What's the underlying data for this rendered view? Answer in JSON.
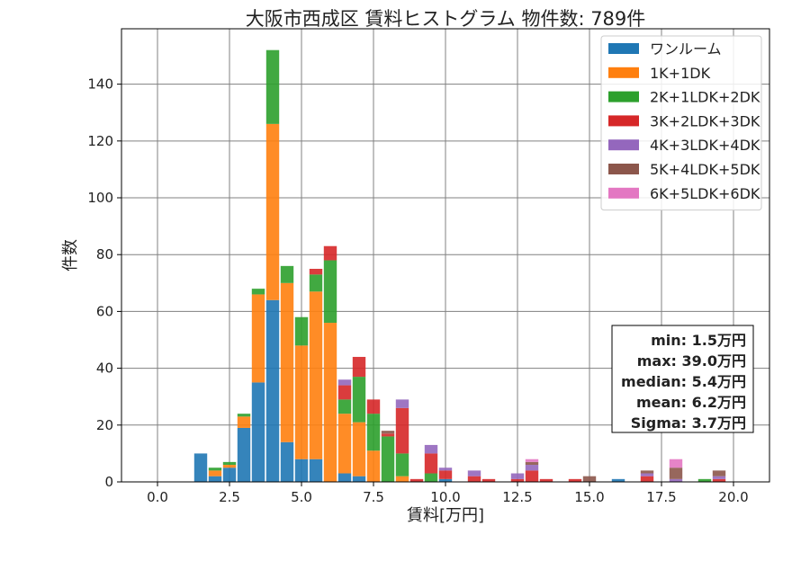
{
  "chart_data": {
    "type": "bar",
    "stacked": true,
    "title": "大阪市西成区 賃料ヒストグラム 物件数: 789件",
    "xlabel": "賃料[万円]",
    "ylabel": "件数",
    "xlim": [
      -1.25,
      21.25
    ],
    "ylim": [
      0,
      159.5
    ],
    "bin_width": 0.5,
    "grid": true,
    "legend_position": "top-right",
    "x_ticks": [
      0.0,
      2.5,
      5.0,
      7.5,
      10.0,
      12.5,
      15.0,
      17.5,
      20.0
    ],
    "x_tick_labels": [
      "0.0",
      "2.5",
      "5.0",
      "7.5",
      "10.0",
      "12.5",
      "15.0",
      "17.5",
      "20.0"
    ],
    "y_ticks": [
      0,
      20,
      40,
      60,
      80,
      100,
      120,
      140
    ],
    "y_tick_labels": [
      "0",
      "20",
      "40",
      "60",
      "80",
      "100",
      "120",
      "140"
    ],
    "x": [
      1.5,
      2.0,
      2.5,
      3.0,
      3.5,
      4.0,
      4.5,
      5.0,
      5.5,
      6.0,
      6.5,
      7.0,
      7.5,
      8.0,
      8.5,
      9.0,
      9.5,
      10.0,
      10.5,
      11.0,
      11.5,
      12.0,
      12.5,
      13.0,
      13.5,
      14.0,
      14.5,
      15.0,
      15.5,
      16.0,
      16.5,
      17.0,
      17.5,
      18.0,
      18.5,
      19.0,
      19.5,
      20.0
    ],
    "series": [
      {
        "name": "ワンルーム",
        "color": "#1f77b4",
        "values": [
          10,
          2,
          5,
          19,
          35,
          64,
          14,
          8,
          8,
          0,
          3,
          2,
          0,
          0,
          0,
          0,
          0,
          1,
          0,
          0,
          0,
          0,
          0,
          0,
          0,
          0,
          0,
          0,
          0,
          1,
          0,
          0,
          0,
          0,
          0,
          0,
          0,
          0
        ]
      },
      {
        "name": "1K+1DK",
        "color": "#ff7f0e",
        "values": [
          0,
          2,
          1,
          4,
          31,
          62,
          56,
          40,
          59,
          56,
          21,
          19,
          11,
          0,
          2,
          0,
          0,
          0,
          0,
          0,
          0,
          0,
          0,
          0,
          0,
          0,
          0,
          0,
          0,
          0,
          0,
          0,
          0,
          0,
          0,
          0,
          0,
          0
        ]
      },
      {
        "name": "2K+1LDK+2DK",
        "color": "#2ca02c",
        "values": [
          0,
          1,
          1,
          1,
          2,
          26,
          6,
          10,
          6,
          22,
          5,
          16,
          13,
          16,
          8,
          0,
          3,
          0,
          0,
          0,
          0,
          0,
          0,
          0,
          0,
          0,
          0,
          0,
          0,
          0,
          0,
          0,
          0,
          0,
          0,
          1,
          0,
          0
        ]
      },
      {
        "name": "3K+2LDK+3DK",
        "color": "#d62728",
        "values": [
          0,
          0,
          0,
          0,
          0,
          0,
          0,
          0,
          2,
          5,
          5,
          7,
          5,
          1,
          16,
          1,
          7,
          3,
          0,
          2,
          1,
          0,
          1,
          4,
          1,
          0,
          1,
          0,
          0,
          0,
          0,
          2,
          0,
          0,
          0,
          0,
          1,
          0
        ]
      },
      {
        "name": "4K+3LDK+4DK",
        "color": "#9467bd",
        "values": [
          0,
          0,
          0,
          0,
          0,
          0,
          0,
          0,
          0,
          0,
          2,
          0,
          0,
          0,
          3,
          0,
          3,
          1,
          0,
          2,
          0,
          0,
          2,
          2,
          0,
          0,
          0,
          0,
          0,
          0,
          0,
          1,
          0,
          1,
          0,
          0,
          1,
          0
        ]
      },
      {
        "name": "5K+4LDK+5DK",
        "color": "#8c564b",
        "values": [
          0,
          0,
          0,
          0,
          0,
          0,
          0,
          0,
          0,
          0,
          0,
          0,
          0,
          1,
          0,
          0,
          0,
          0,
          0,
          0,
          0,
          0,
          0,
          1,
          0,
          0,
          0,
          2,
          0,
          0,
          0,
          1,
          0,
          4,
          0,
          0,
          2,
          0
        ]
      },
      {
        "name": "6K+5LDK+6DK",
        "color": "#e377c2",
        "values": [
          0,
          0,
          0,
          0,
          0,
          0,
          0,
          0,
          0,
          0,
          0,
          0,
          0,
          0,
          0,
          0,
          0,
          0,
          0,
          0,
          0,
          0,
          0,
          1,
          0,
          0,
          0,
          0,
          0,
          0,
          0,
          0,
          0,
          3,
          0,
          0,
          0,
          0
        ]
      }
    ],
    "stats_box": [
      "min: 1.5万円",
      "max: 39.0万円",
      "median: 5.4万円",
      "mean: 6.2万円",
      "Sigma: 3.7万円"
    ]
  }
}
